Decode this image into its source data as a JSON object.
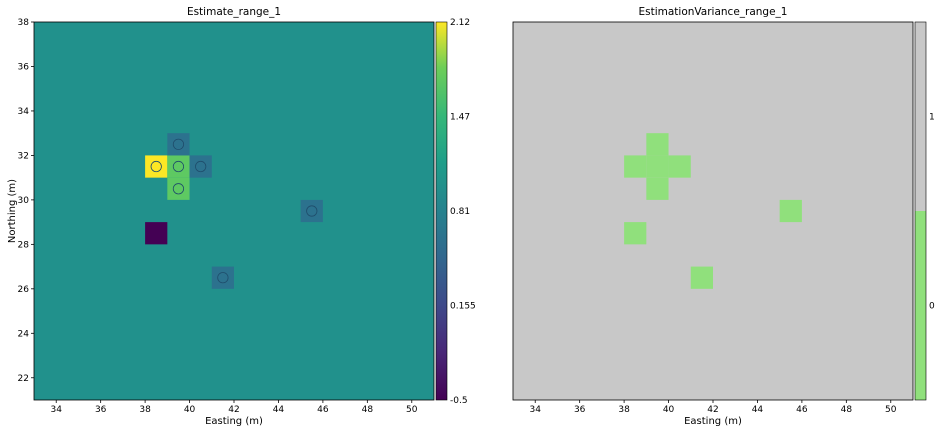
{
  "chart_data": [
    {
      "type": "heatmap",
      "title": "Estimate_range_1",
      "xlabel": "Easting (m)",
      "ylabel": "Northing (m)",
      "xlim": [
        33,
        51
      ],
      "ylim": [
        21,
        38
      ],
      "xticks": [
        34,
        36,
        38,
        40,
        42,
        44,
        46,
        48,
        50
      ],
      "yticks": [
        22,
        24,
        26,
        28,
        30,
        32,
        34,
        36,
        38
      ],
      "cell_size": 1,
      "background_value": 0.81,
      "background_color": "#21918c",
      "cells": [
        {
          "x": 38,
          "y": 31,
          "value": 2.12,
          "color": "#fde725"
        },
        {
          "x": 39,
          "y": 31,
          "value": 1.6,
          "color": "#5ec962"
        },
        {
          "x": 39,
          "y": 30,
          "value": 1.6,
          "color": "#5ec962"
        },
        {
          "x": 39,
          "y": 32,
          "value": 0.45,
          "color": "#2c728e"
        },
        {
          "x": 40,
          "y": 31,
          "value": 0.45,
          "color": "#2c728e"
        },
        {
          "x": 45,
          "y": 29,
          "value": 0.45,
          "color": "#2c728e"
        },
        {
          "x": 41,
          "y": 26,
          "value": 0.45,
          "color": "#2c728e"
        },
        {
          "x": 38,
          "y": 28,
          "value": -0.5,
          "color": "#440154"
        }
      ],
      "markers": [
        {
          "x": 38.5,
          "y": 31.5
        },
        {
          "x": 39.5,
          "y": 31.5
        },
        {
          "x": 39.5,
          "y": 32.5
        },
        {
          "x": 40.5,
          "y": 31.5
        },
        {
          "x": 39.5,
          "y": 30.5
        },
        {
          "x": 45.5,
          "y": 29.5
        },
        {
          "x": 41.5,
          "y": 26.5
        }
      ],
      "colorbar": {
        "ticks": [
          "2.12",
          "1.47",
          "0.81",
          "0.155",
          "-0.5"
        ],
        "range": [
          -0.5,
          2.12
        ],
        "colormap": "viridis"
      }
    },
    {
      "type": "heatmap",
      "title": "EstimationVariance_range_1",
      "xlabel": "Easting (m)",
      "ylabel": "",
      "xlim": [
        33,
        51
      ],
      "ylim": [
        21,
        38
      ],
      "xticks": [
        34,
        36,
        38,
        40,
        42,
        44,
        46,
        48,
        50
      ],
      "yticks": [],
      "cell_size": 1,
      "background_value": 1,
      "background_color": "#c8c8c8",
      "cells": [
        {
          "x": 39,
          "y": 32,
          "value": 0,
          "color": "#90e07c"
        },
        {
          "x": 38,
          "y": 31,
          "value": 0,
          "color": "#90e07c"
        },
        {
          "x": 39,
          "y": 31,
          "value": 0,
          "color": "#90e07c"
        },
        {
          "x": 40,
          "y": 31,
          "value": 0,
          "color": "#90e07c"
        },
        {
          "x": 39,
          "y": 30,
          "value": 0,
          "color": "#90e07c"
        },
        {
          "x": 45,
          "y": 29,
          "value": 0,
          "color": "#90e07c"
        },
        {
          "x": 38,
          "y": 28,
          "value": 0,
          "color": "#90e07c"
        },
        {
          "x": 41,
          "y": 26,
          "value": 0,
          "color": "#90e07c"
        }
      ],
      "markers": [],
      "colorbar": {
        "ticks": [
          "1",
          "0"
        ],
        "range": [
          0,
          1
        ],
        "colors": [
          "#90e07c",
          "#c8c8c8"
        ]
      }
    }
  ]
}
